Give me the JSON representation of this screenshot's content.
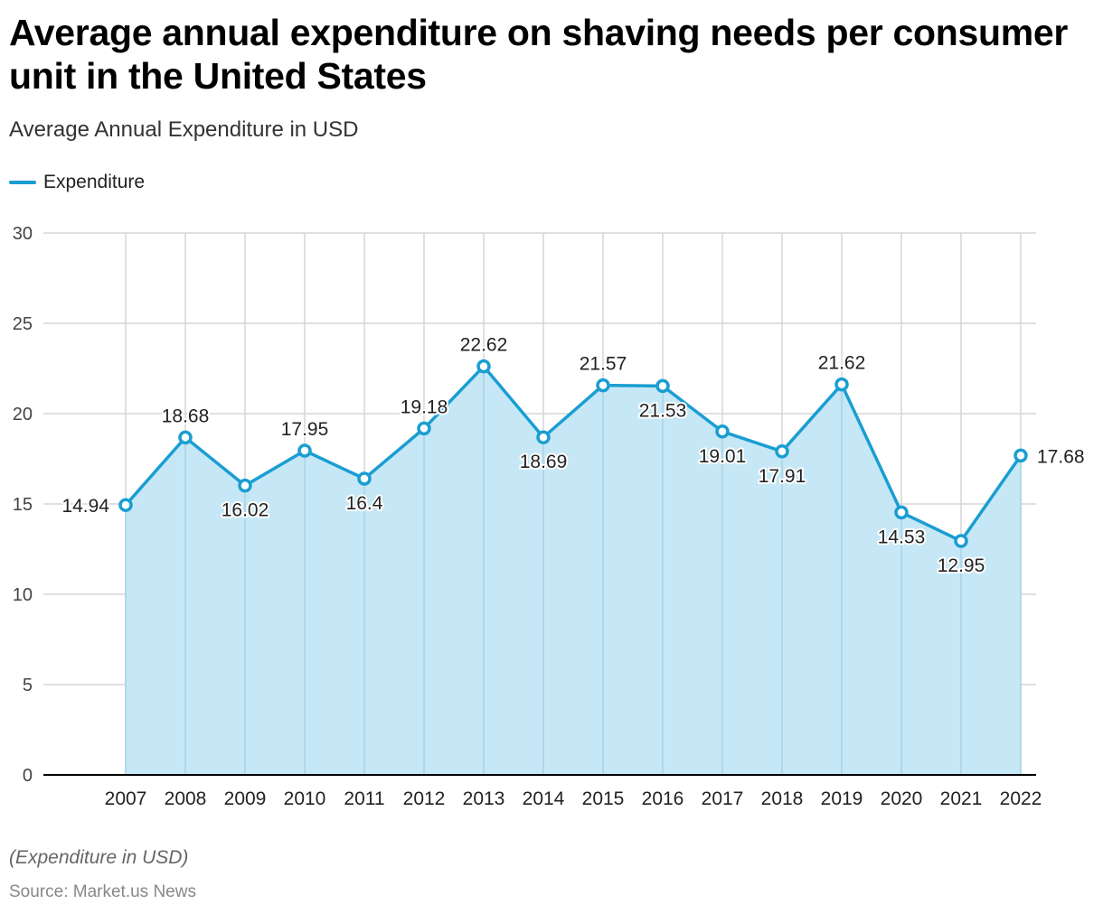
{
  "header": {
    "title": "Average annual expenditure on shaving needs per consumer unit in the United States",
    "subtitle": "Average Annual Expenditure in USD"
  },
  "footer": {
    "note": "(Expenditure in USD)",
    "source": "Source: Market.us News"
  },
  "colors": {
    "line": "#1a9ed2",
    "area": "#c6e8f6",
    "grid": "#d6d6d6",
    "axis": "#000000"
  },
  "chart_data": {
    "type": "line",
    "title": "Average annual expenditure on shaving needs per consumer unit in the United States",
    "subtitle": "Average Annual Expenditure in USD",
    "categories": [
      "2007",
      "2008",
      "2009",
      "2010",
      "2011",
      "2012",
      "2013",
      "2014",
      "2015",
      "2016",
      "2017",
      "2018",
      "2019",
      "2020",
      "2021",
      "2022"
    ],
    "series": [
      {
        "name": "Expenditure",
        "values": [
          14.94,
          18.68,
          16.02,
          17.95,
          16.4,
          19.18,
          22.62,
          18.69,
          21.57,
          21.53,
          19.01,
          17.91,
          21.62,
          14.53,
          12.95,
          17.68
        ]
      }
    ],
    "data_labels": [
      "14.94",
      "18.68",
      "16.02",
      "17.95",
      "16.4",
      "19.18",
      "22.62",
      "18.69",
      "21.57",
      "21.53",
      "19.01",
      "17.91",
      "21.62",
      "14.53",
      "12.95",
      "17.68"
    ],
    "y_ticks": [
      0,
      5,
      10,
      15,
      20,
      25,
      30
    ],
    "ylim": [
      0,
      30
    ],
    "grid": true,
    "area_fill": true,
    "legend_position": "top-left"
  }
}
